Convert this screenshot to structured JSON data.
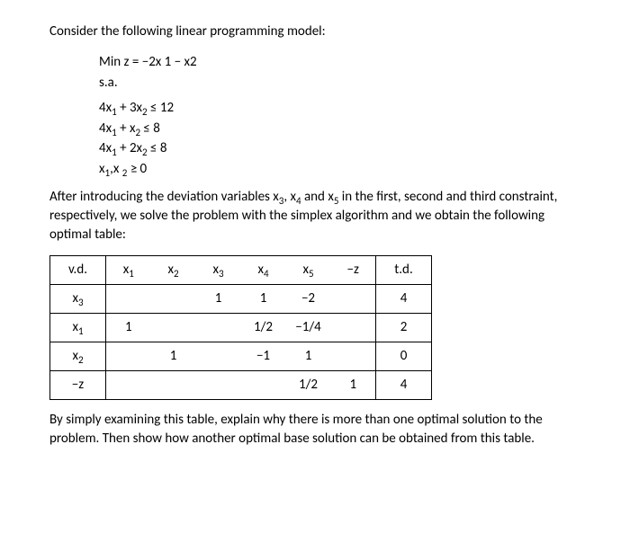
{
  "intro": "Consider the following linear programming model:",
  "model": {
    "objective": "Min z = −2x 1 − x2",
    "sa": "s.a.",
    "constraints": [
      "4x₁ + 3x₂ ≤ 12",
      "4x₁ + x₂ ≤ 8",
      "4x₁ + 2x₂ ≤ 8",
      "x₁,x ₂ ≥ 0"
    ]
  },
  "middle_text": "After introducing the deviation variables x₃, x₄ and x₅ in the first, second and third constraint, respectively, we solve the problem with the simplex algorithm and we obtain the following optimal table:",
  "table": {
    "headers": [
      "v.d.",
      "x₁",
      "x₂",
      "x₃",
      "x₄",
      "x₅",
      "−z",
      "t.d."
    ],
    "rows": [
      [
        "x₃",
        "",
        "",
        "1",
        "1",
        "−2",
        "",
        "4"
      ],
      [
        "x₁",
        "1",
        "",
        "",
        "1/2",
        "−1/4",
        "",
        "2"
      ],
      [
        "x₂",
        "",
        "1",
        "",
        "−1",
        "1",
        "",
        "0"
      ],
      [
        "−z",
        "",
        "",
        "",
        "",
        "1/2",
        "1",
        "4"
      ]
    ],
    "border_color": "#000000",
    "background_color": "#ffffff",
    "font_size": 14
  },
  "closing_text": "By simply examining this table, explain why there is more than one optimal solution to the problem. Then show how another optimal base solution can be obtained from this table."
}
